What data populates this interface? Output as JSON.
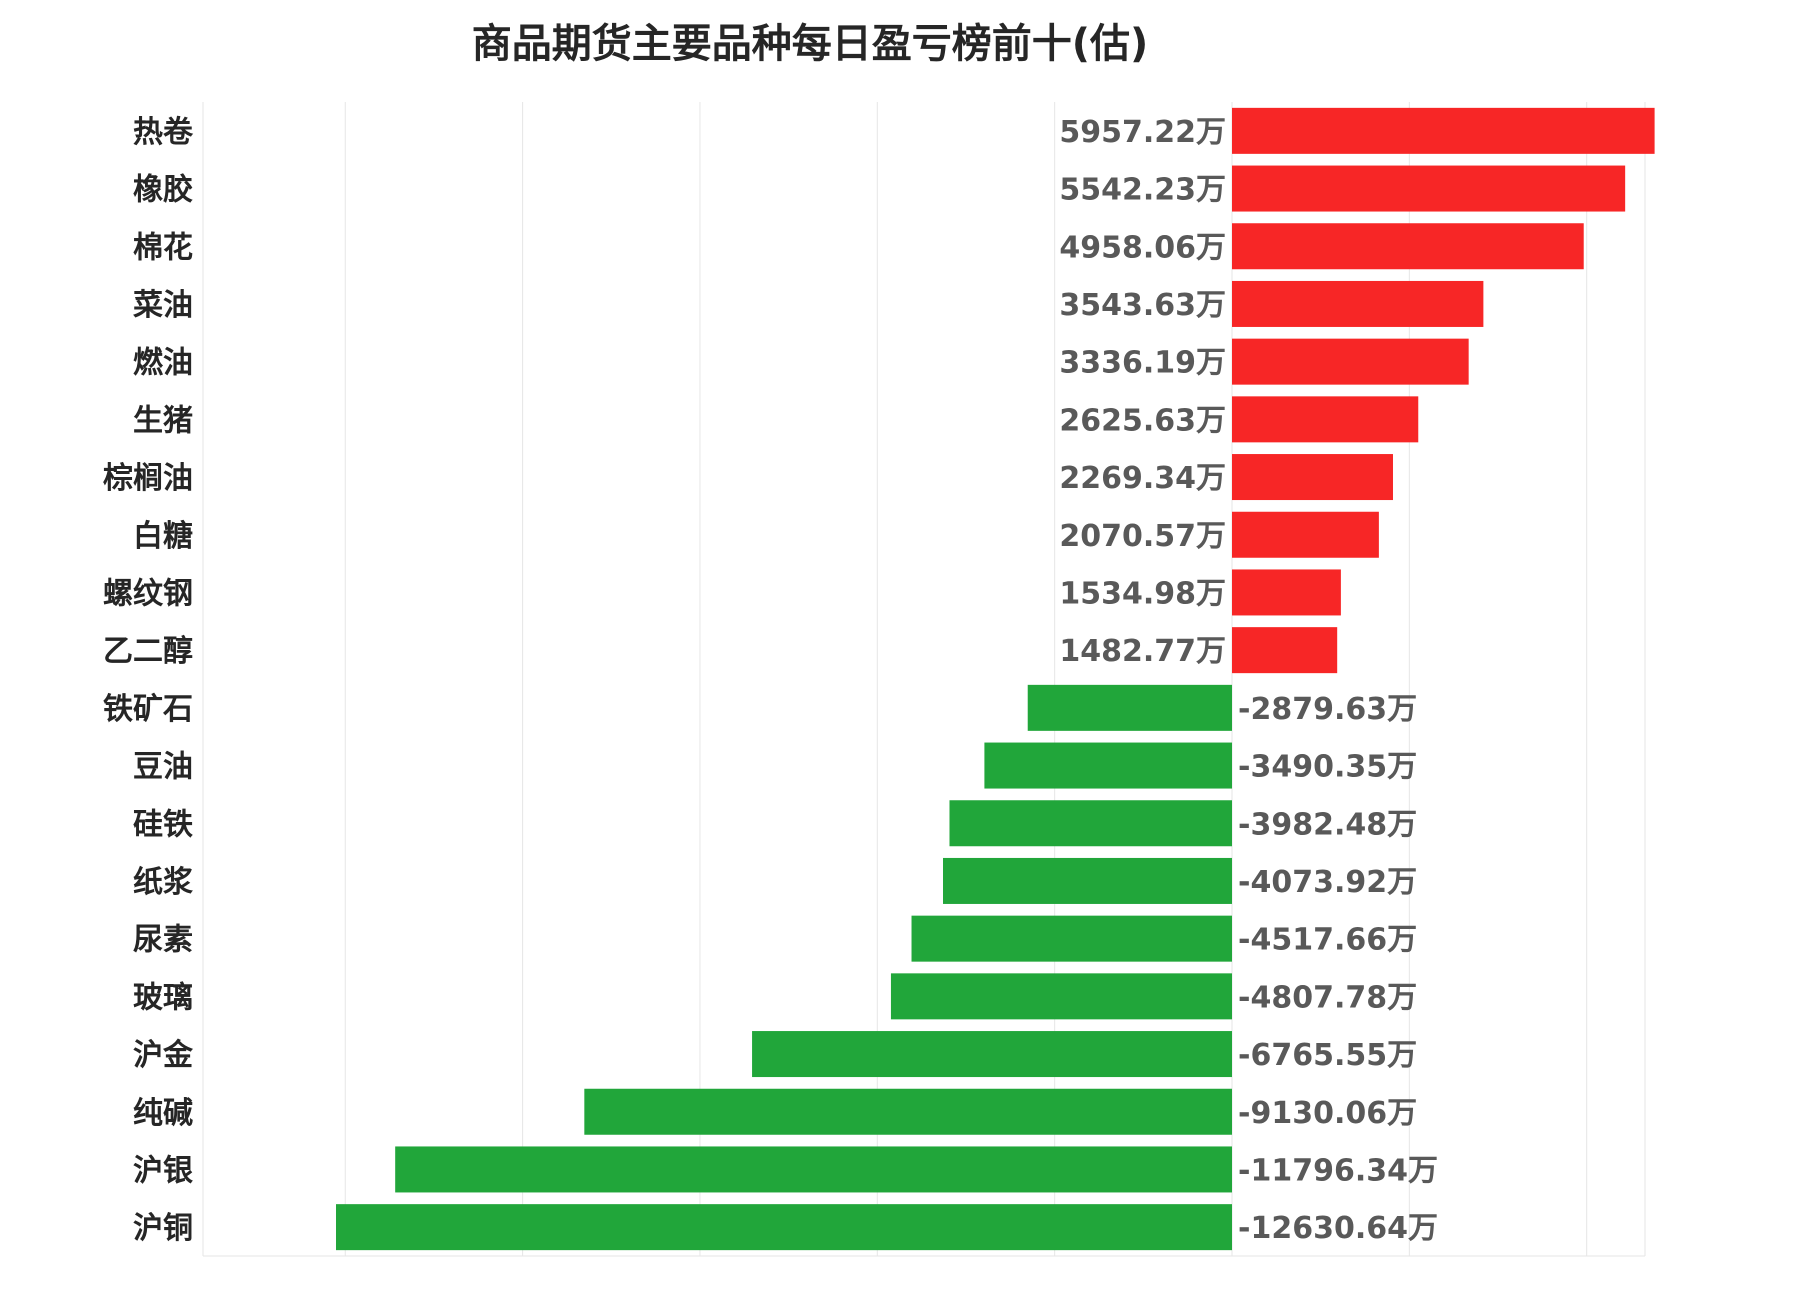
{
  "chart_data": {
    "type": "bar",
    "orientation": "horizontal",
    "title": "商品期货主要品种每日盈亏榜前十(估)",
    "unit": "万",
    "categories": [
      "热卷",
      "橡胶",
      "棉花",
      "菜油",
      "燃油",
      "生猪",
      "棕榈油",
      "白糖",
      "螺纹钢",
      "乙二醇",
      "铁矿石",
      "豆油",
      "硅铁",
      "纸浆",
      "尿素",
      "玻璃",
      "沪金",
      "纯碱",
      "沪银",
      "沪铜"
    ],
    "values": [
      5957.22,
      5542.23,
      4958.06,
      3543.63,
      3336.19,
      2625.63,
      2269.34,
      2070.57,
      1534.98,
      1482.77,
      -2879.63,
      -3490.35,
      -3982.48,
      -4073.92,
      -4517.66,
      -4807.78,
      -6765.55,
      -9130.06,
      -11796.34,
      -12630.64
    ],
    "value_labels": [
      "5957.22万",
      "5542.23万",
      "4958.06万",
      "3543.63万",
      "3336.19万",
      "2625.63万",
      "2269.34万",
      "2070.57万",
      "1534.98万",
      "1482.77万",
      "-2879.63万",
      "-3490.35万",
      "-3982.48万",
      "-4073.92万",
      "-4517.66万",
      "-4807.78万",
      "-6765.55万",
      "-9130.06万",
      "-11796.34万",
      "-12630.64万"
    ],
    "xlim": [
      -15000,
      6000
    ],
    "grid": true,
    "colors": {
      "positive": "#f72626",
      "negative": "#21a63a"
    }
  }
}
